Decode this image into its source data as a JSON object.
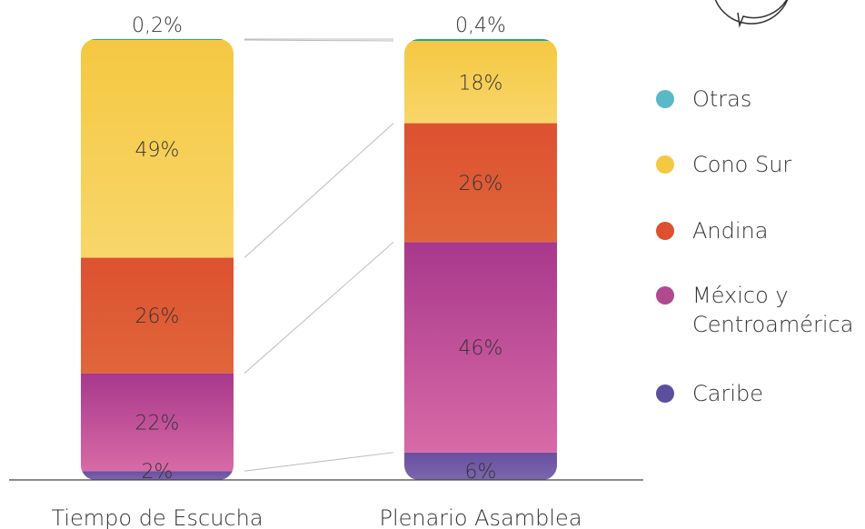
{
  "chart_data": {
    "type": "bar",
    "stacked": true,
    "normalized": true,
    "categories": [
      "Tiempo de Escucha",
      "Plenario Asamblea"
    ],
    "series": [
      {
        "name": "Caribe",
        "values": [
          2,
          6
        ],
        "labels": [
          "2%",
          "6%"
        ],
        "color": "#6a4fa0",
        "color_light": "#7c66ad"
      },
      {
        "name": "México y Centroamérica",
        "values": [
          22,
          46
        ],
        "labels": [
          "22%",
          "46%"
        ],
        "color": "#a8388c",
        "color_light": "#d86aa6"
      },
      {
        "name": "Andina",
        "values": [
          26,
          26
        ],
        "labels": [
          "26%",
          "26%"
        ],
        "color": "#dd5130",
        "color_light": "#e0663a"
      },
      {
        "name": "Cono Sur",
        "values": [
          49,
          18
        ],
        "labels": [
          "49%",
          "18%"
        ],
        "color": "#f5c842",
        "color_light": "#f8d66a"
      },
      {
        "name": "Otras",
        "values": [
          0.2,
          0.4
        ],
        "labels": [
          "0,2%",
          "0,4%"
        ],
        "color": "#1aa3a8",
        "color_light": "#1aa3a8"
      }
    ],
    "legend": {
      "placement": "right",
      "entries": [
        {
          "text": "Otras",
          "color": "#5ab8c8"
        },
        {
          "text": "Cono Sur",
          "color": "#f5c842"
        },
        {
          "text": "Andina",
          "color": "#dd5130"
        },
        {
          "text_lines": [
            "México y",
            "Centroamérica"
          ],
          "color": "#b04a8e"
        },
        {
          "text": "Caribe",
          "color": "#5d4fa0"
        }
      ]
    },
    "ylim": [
      0,
      100
    ],
    "grid": false,
    "connector_color": "#bbbbbb"
  }
}
